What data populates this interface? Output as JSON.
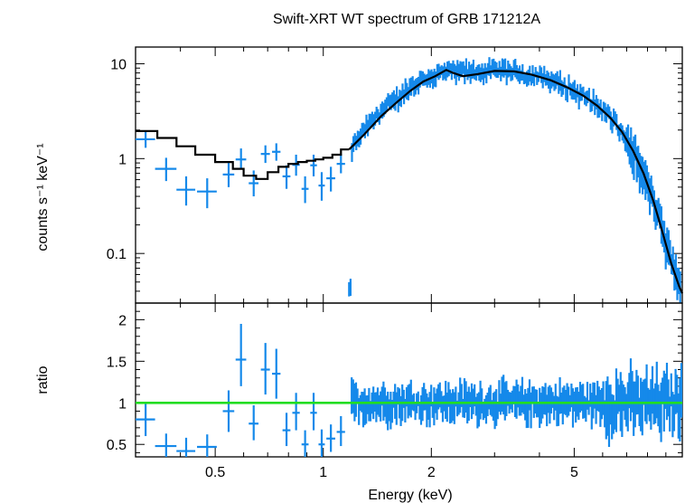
{
  "chart_data": [
    {
      "type": "scatter",
      "panel": "spectrum",
      "title": "Swift-XRT WT spectrum of GRB 171212A",
      "ylabel": "counts s⁻¹ keV⁻¹",
      "xlabel": "",
      "xscale": "log",
      "yscale": "log",
      "xlim": [
        0.3,
        10
      ],
      "ylim": [
        0.03,
        15
      ],
      "yticks": [
        {
          "value": 0.1,
          "label": "0.1"
        },
        {
          "value": 1,
          "label": "1"
        },
        {
          "value": 10,
          "label": "10"
        }
      ],
      "colors": {
        "data": "#1589ea",
        "model": "#000000"
      },
      "series": [
        {
          "kind": "data-with-errors",
          "points_lowE": [
            {
              "x": 0.32,
              "xerr": 0.02,
              "y": 1.6,
              "ylo": 1.3,
              "yhi": 1.95
            },
            {
              "x": 0.365,
              "xerr": 0.025,
              "y": 0.78,
              "ylo": 0.58,
              "yhi": 1.02
            },
            {
              "x": 0.415,
              "xerr": 0.025,
              "y": 0.47,
              "ylo": 0.32,
              "yhi": 0.65
            },
            {
              "x": 0.475,
              "xerr": 0.03,
              "y": 0.45,
              "ylo": 0.3,
              "yhi": 0.62
            },
            {
              "x": 0.545,
              "xerr": 0.02,
              "y": 0.68,
              "ylo": 0.5,
              "yhi": 0.9
            },
            {
              "x": 0.59,
              "xerr": 0.02,
              "y": 0.98,
              "ylo": 0.78,
              "yhi": 1.28
            },
            {
              "x": 0.64,
              "xerr": 0.02,
              "y": 0.55,
              "ylo": 0.4,
              "yhi": 0.75
            },
            {
              "x": 0.69,
              "xerr": 0.02,
              "y": 1.12,
              "ylo": 0.9,
              "yhi": 1.38
            },
            {
              "x": 0.74,
              "xerr": 0.02,
              "y": 1.18,
              "ylo": 0.95,
              "yhi": 1.45
            },
            {
              "x": 0.79,
              "xerr": 0.02,
              "y": 0.65,
              "ylo": 0.48,
              "yhi": 0.85
            },
            {
              "x": 0.84,
              "xerr": 0.02,
              "y": 0.86,
              "ylo": 0.66,
              "yhi": 1.1
            },
            {
              "x": 0.89,
              "xerr": 0.02,
              "y": 0.48,
              "ylo": 0.34,
              "yhi": 0.65
            },
            {
              "x": 0.94,
              "xerr": 0.02,
              "y": 0.85,
              "ylo": 0.65,
              "yhi": 1.1
            },
            {
              "x": 0.99,
              "xerr": 0.02,
              "y": 0.52,
              "ylo": 0.36,
              "yhi": 0.72
            },
            {
              "x": 1.05,
              "xerr": 0.03,
              "y": 0.62,
              "ylo": 0.45,
              "yhi": 0.82
            },
            {
              "x": 1.12,
              "xerr": 0.03,
              "y": 0.88,
              "ylo": 0.7,
              "yhi": 1.12
            }
          ],
          "dense_highE_envelope": [
            {
              "x": 1.2,
              "y": 1.3
            },
            {
              "x": 1.3,
              "y": 2.0
            },
            {
              "x": 1.4,
              "y": 2.8
            },
            {
              "x": 1.5,
              "y": 3.6
            },
            {
              "x": 1.65,
              "y": 4.8
            },
            {
              "x": 1.8,
              "y": 6.2
            },
            {
              "x": 2.0,
              "y": 7.4
            },
            {
              "x": 2.2,
              "y": 8.3
            },
            {
              "x": 2.5,
              "y": 8.3
            },
            {
              "x": 3.0,
              "y": 8.6
            },
            {
              "x": 3.5,
              "y": 8.2
            },
            {
              "x": 4.0,
              "y": 7.4
            },
            {
              "x": 4.5,
              "y": 6.4
            },
            {
              "x": 5.0,
              "y": 5.3
            },
            {
              "x": 5.5,
              "y": 4.3
            },
            {
              "x": 6.0,
              "y": 3.3
            },
            {
              "x": 6.5,
              "y": 2.4
            },
            {
              "x": 7.0,
              "y": 1.6
            },
            {
              "x": 7.5,
              "y": 1.0
            },
            {
              "x": 8.0,
              "y": 0.55
            },
            {
              "x": 8.5,
              "y": 0.28
            },
            {
              "x": 9.0,
              "y": 0.14
            },
            {
              "x": 9.5,
              "y": 0.07
            },
            {
              "x": 10.0,
              "y": 0.04
            }
          ]
        },
        {
          "kind": "model-step",
          "edges": [
            0.3,
            0.345,
            0.39,
            0.44,
            0.5,
            0.56,
            0.6,
            0.65,
            0.7,
            0.75,
            0.8,
            0.85,
            0.9,
            0.95,
            1.0,
            1.06,
            1.12,
            1.18
          ],
          "values": [
            1.95,
            1.65,
            1.35,
            1.1,
            0.92,
            0.78,
            0.66,
            0.61,
            0.72,
            0.82,
            0.88,
            0.92,
            0.95,
            0.98,
            1.02,
            1.1,
            1.25
          ]
        },
        {
          "kind": "model-smooth",
          "points": [
            {
              "x": 1.18,
              "y": 1.25
            },
            {
              "x": 1.3,
              "y": 1.8
            },
            {
              "x": 1.45,
              "y": 2.8
            },
            {
              "x": 1.6,
              "y": 3.9
            },
            {
              "x": 1.75,
              "y": 5.2
            },
            {
              "x": 1.9,
              "y": 6.5
            },
            {
              "x": 2.05,
              "y": 7.4
            },
            {
              "x": 2.2,
              "y": 8.6
            },
            {
              "x": 2.3,
              "y": 8.0
            },
            {
              "x": 2.45,
              "y": 7.4
            },
            {
              "x": 2.7,
              "y": 7.8
            },
            {
              "x": 3.0,
              "y": 8.4
            },
            {
              "x": 3.4,
              "y": 8.3
            },
            {
              "x": 3.8,
              "y": 7.7
            },
            {
              "x": 4.3,
              "y": 6.7
            },
            {
              "x": 4.8,
              "y": 5.6
            },
            {
              "x": 5.3,
              "y": 4.6
            },
            {
              "x": 5.8,
              "y": 3.6
            },
            {
              "x": 6.3,
              "y": 2.7
            },
            {
              "x": 6.8,
              "y": 1.9
            },
            {
              "x": 7.3,
              "y": 1.2
            },
            {
              "x": 7.8,
              "y": 0.7
            },
            {
              "x": 8.3,
              "y": 0.36
            },
            {
              "x": 8.8,
              "y": 0.17
            },
            {
              "x": 9.3,
              "y": 0.08
            },
            {
              "x": 9.8,
              "y": 0.045
            },
            {
              "x": 10.0,
              "y": 0.038
            }
          ]
        }
      ]
    },
    {
      "type": "scatter",
      "panel": "ratio",
      "ylabel": "ratio",
      "xlabel": "Energy (keV)",
      "xscale": "log",
      "yscale": "linear",
      "xlim": [
        0.3,
        10
      ],
      "ylim": [
        0.35,
        2.2
      ],
      "xticks": [
        {
          "value": 0.5,
          "label": "0.5"
        },
        {
          "value": 1,
          "label": "1"
        },
        {
          "value": 2,
          "label": "2"
        },
        {
          "value": 5,
          "label": "5"
        }
      ],
      "yticks": [
        {
          "value": 0.5,
          "label": "0.5"
        },
        {
          "value": 1,
          "label": "1"
        },
        {
          "value": 1.5,
          "label": "1.5"
        },
        {
          "value": 2,
          "label": "2"
        }
      ],
      "reference_line": 1,
      "colors": {
        "data": "#1589ea",
        "reference": "#22dd22"
      },
      "points_lowE": [
        {
          "x": 0.32,
          "xerr": 0.02,
          "y": 0.8,
          "ylo": 0.6,
          "yhi": 1.0
        },
        {
          "x": 0.365,
          "xerr": 0.025,
          "y": 0.48,
          "ylo": 0.35,
          "yhi": 0.63
        },
        {
          "x": 0.415,
          "xerr": 0.025,
          "y": 0.42,
          "ylo": 0.35,
          "yhi": 0.58
        },
        {
          "x": 0.475,
          "xerr": 0.03,
          "y": 0.47,
          "ylo": 0.35,
          "yhi": 0.62
        },
        {
          "x": 0.545,
          "xerr": 0.02,
          "y": 0.9,
          "ylo": 0.65,
          "yhi": 1.15
        },
        {
          "x": 0.59,
          "xerr": 0.02,
          "y": 1.52,
          "ylo": 1.2,
          "yhi": 1.95
        },
        {
          "x": 0.64,
          "xerr": 0.02,
          "y": 0.75,
          "ylo": 0.55,
          "yhi": 0.97
        },
        {
          "x": 0.69,
          "xerr": 0.02,
          "y": 1.4,
          "ylo": 1.1,
          "yhi": 1.72
        },
        {
          "x": 0.74,
          "xerr": 0.02,
          "y": 1.35,
          "ylo": 1.05,
          "yhi": 1.65
        },
        {
          "x": 0.79,
          "xerr": 0.02,
          "y": 0.67,
          "ylo": 0.48,
          "yhi": 0.88
        },
        {
          "x": 0.84,
          "xerr": 0.02,
          "y": 0.88,
          "ylo": 0.67,
          "yhi": 1.12
        },
        {
          "x": 0.89,
          "xerr": 0.02,
          "y": 0.5,
          "ylo": 0.35,
          "yhi": 0.67
        },
        {
          "x": 0.94,
          "xerr": 0.02,
          "y": 0.88,
          "ylo": 0.67,
          "yhi": 1.12
        },
        {
          "x": 0.99,
          "xerr": 0.02,
          "y": 0.5,
          "ylo": 0.35,
          "yhi": 0.68
        },
        {
          "x": 1.05,
          "xerr": 0.03,
          "y": 0.57,
          "ylo": 0.41,
          "yhi": 0.74
        },
        {
          "x": 1.12,
          "xerr": 0.03,
          "y": 0.65,
          "ylo": 0.48,
          "yhi": 0.84
        }
      ],
      "dense_highE_scatter": {
        "from": 1.2,
        "to": 10.0,
        "mean": 1.0,
        "spread": 0.35
      }
    }
  ]
}
